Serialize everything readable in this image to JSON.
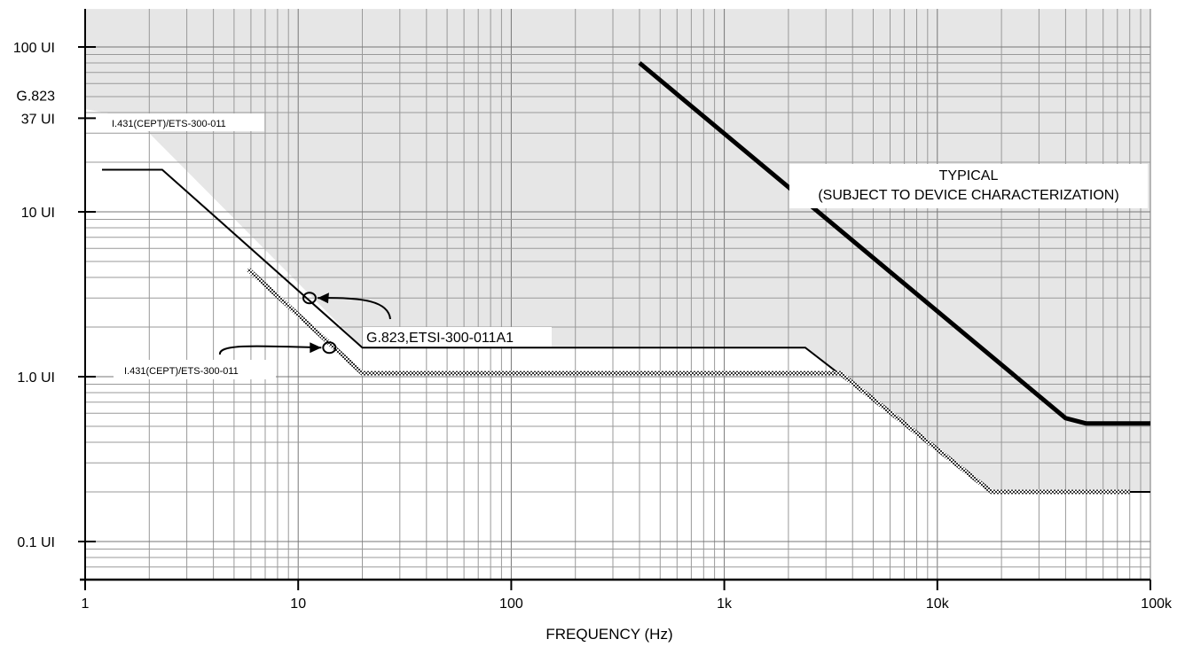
{
  "chart_data": {
    "type": "line",
    "title": "",
    "xlabel": "FREQUENCY (Hz)",
    "ylabel": "",
    "x_scale": "log",
    "y_scale": "log",
    "xlim": [
      1,
      100000
    ],
    "ylim": [
      0.05,
      170
    ],
    "grid": true,
    "x_ticks": [
      {
        "value": 1,
        "label": "1"
      },
      {
        "value": 10,
        "label": "10"
      },
      {
        "value": 100,
        "label": "100"
      },
      {
        "value": 1000,
        "label": "1k"
      },
      {
        "value": 10000,
        "label": "10k"
      },
      {
        "value": 100000,
        "label": "100k"
      }
    ],
    "y_ticks": [
      {
        "value": 0.1,
        "label": "0.1 UI"
      },
      {
        "value": 1,
        "label": "1.0 UI"
      },
      {
        "value": 10,
        "label": "10 UI"
      },
      {
        "value": 37,
        "label": "37 UI"
      },
      {
        "value": 100,
        "label": "100 UI"
      }
    ],
    "y_extra_label": "G.823",
    "shaded_region": {
      "x": [
        1,
        1,
        1.7,
        20,
        2400,
        18000,
        100000,
        100000
      ],
      "y": [
        170,
        42,
        37,
        1.5,
        1.5,
        0.2,
        0.2,
        170
      ],
      "color": "#e6e6e6"
    },
    "series": [
      {
        "name": "TYPICAL",
        "style": "thick",
        "color": "#000000",
        "x": [
          400,
          40000,
          50000,
          100000
        ],
        "y": [
          80,
          0.56,
          0.52,
          0.52
        ]
      },
      {
        "name": "G.823,ETSI-300-011A1",
        "style": "thin",
        "color": "#000000",
        "x": [
          1.2,
          2.3,
          20,
          2400,
          18000,
          100000
        ],
        "y": [
          18,
          18,
          1.5,
          1.5,
          0.2,
          0.2
        ]
      },
      {
        "name": "I.431(CEPT)/ETS-300-011",
        "style": "hatched",
        "color": "#444444",
        "x": [
          5.8,
          20,
          3500,
          18000,
          80000
        ],
        "y": [
          4.5,
          1.05,
          1.05,
          0.2,
          0.2
        ]
      }
    ],
    "annotations": {
      "typical_line1": "TYPICAL",
      "typical_line2": "(SUBJECT TO DEVICE CHARACTERIZATION)",
      "g823_curve": "G.823,ETSI-300-011A1",
      "i431_curve": "I.431(CEPT)/ETS-300-011",
      "i431_37ui": "I.431(CEPT)/ETS-300-011"
    }
  }
}
